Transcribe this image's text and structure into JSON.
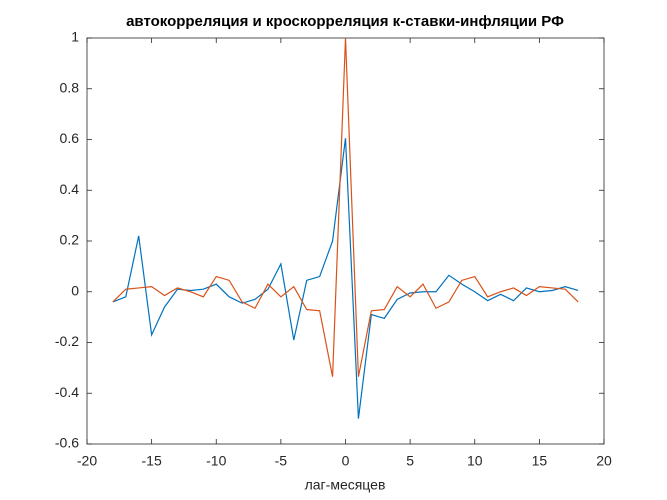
{
  "chart_data": {
    "type": "line",
    "title": "автокорреляция и кроскорреляция к-ставки-инфляции РФ",
    "x_label": "лаг-месяцев",
    "x": [
      -18,
      -17,
      -16,
      -15,
      -14,
      -13,
      -12,
      -11,
      -10,
      -9,
      -8,
      -7,
      -6,
      -5,
      -4,
      -3,
      -2,
      -1,
      0,
      1,
      2,
      3,
      4,
      5,
      6,
      7,
      8,
      9,
      10,
      11,
      12,
      13,
      14,
      15,
      16,
      17,
      18
    ],
    "series": [
      {
        "color": "#0072BD",
        "values": [
          -0.04,
          -0.02,
          0.22,
          -0.17,
          -0.06,
          0.01,
          0.005,
          0.01,
          0.03,
          -0.02,
          -0.045,
          -0.03,
          0.01,
          0.11,
          -0.19,
          0.045,
          0.06,
          0.2,
          0.605,
          -0.5,
          -0.09,
          -0.105,
          -0.03,
          -0.005,
          0.0,
          0.0,
          0.065,
          0.03,
          0.0,
          -0.035,
          -0.01,
          -0.035,
          0.015,
          0.0,
          0.005,
          0.02,
          0.005
        ]
      },
      {
        "color": "#D95319",
        "values": [
          -0.04,
          0.01,
          0.015,
          0.02,
          -0.015,
          0.015,
          0.0,
          -0.02,
          0.06,
          0.045,
          -0.04,
          -0.065,
          0.03,
          -0.02,
          0.02,
          -0.07,
          -0.075,
          -0.335,
          1,
          -0.335,
          -0.075,
          -0.07,
          0.02,
          -0.02,
          0.03,
          -0.065,
          -0.04,
          0.045,
          0.06,
          -0.02,
          0.0,
          0.015,
          -0.015,
          0.02,
          0.015,
          0.01,
          -0.04
        ]
      }
    ],
    "xlim": [
      -20,
      20
    ],
    "ylim": [
      -0.6,
      1
    ],
    "xticks": [
      -20,
      -15,
      -10,
      -5,
      0,
      5,
      10,
      15,
      20
    ],
    "yticks": [
      -0.6,
      -0.4,
      -0.2,
      0,
      0.2,
      0.4,
      0.6,
      0.8,
      1
    ],
    "grid": false
  }
}
